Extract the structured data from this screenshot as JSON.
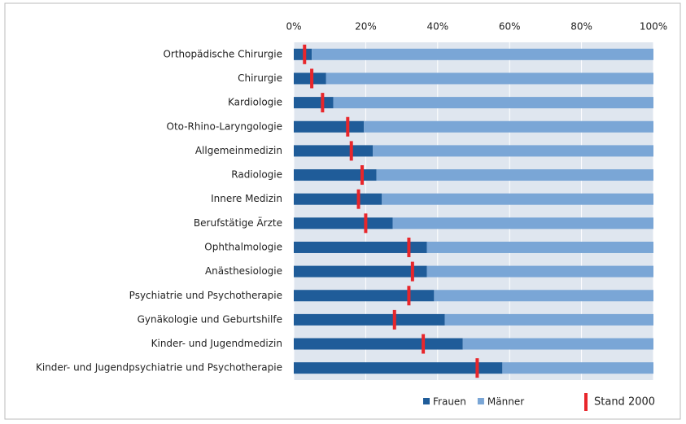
{
  "chart_data": {
    "type": "stacked_bar_horizontal",
    "categories": [
      "Orthopädische Chirurgie",
      "Chirurgie",
      "Kardiologie",
      "Oto-Rhino-Laryngologie",
      "Allgemeinmedizin",
      "Radiologie",
      "Innere Medizin",
      "Berufstätige Ärzte",
      "Ophthalmologie",
      "Anästhesiologie",
      "Psychiatrie und Psychotherapie",
      "Gynäkologie und Geburtshilfe",
      "Kinder- und Jugendmedizin",
      "Kinder- und Jugendpsychiatrie und Psychotherapie"
    ],
    "series": [
      {
        "name": "Frauen",
        "color": "#1f5c99",
        "values": [
          5,
          9,
          11,
          19.5,
          22,
          23,
          24.5,
          27.5,
          37,
          37,
          39,
          42,
          47,
          58
        ]
      },
      {
        "name": "Männer",
        "color": "#7aa6d6",
        "values": [
          95,
          91,
          89,
          80.5,
          78,
          77,
          75.5,
          72.5,
          63,
          63,
          61,
          58,
          53,
          42
        ]
      }
    ],
    "markers": {
      "name": "Stand 2000",
      "color": "#e8262b",
      "values": [
        3,
        5,
        8,
        15,
        16,
        19,
        18,
        20,
        32,
        33,
        32,
        28,
        36,
        51
      ]
    },
    "xlim": [
      0,
      100
    ],
    "xticks": [
      {
        "value": 0,
        "label": "0%"
      },
      {
        "value": 20,
        "label": "20%"
      },
      {
        "value": 40,
        "label": "40%"
      },
      {
        "value": 60,
        "label": "60%"
      },
      {
        "value": 80,
        "label": "80%"
      },
      {
        "value": 100,
        "label": "100%"
      }
    ],
    "grid": true
  }
}
